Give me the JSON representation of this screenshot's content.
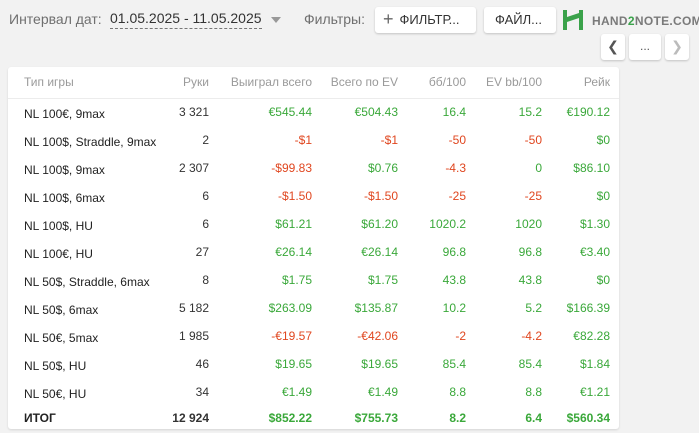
{
  "header": {
    "date_label": "Интервал дат:",
    "date_range": "01.05.2025 - 11.05.2025",
    "filters_label": "Фильтры:",
    "filter_button": "ФИЛЬТР...",
    "file_button": "ФАЙЛ...",
    "logo_prefix": "HAND",
    "logo_highlight": "2",
    "logo_suffix": "NOTE.COM"
  },
  "nav": {
    "prev": "❮",
    "more": "...",
    "next": "❯"
  },
  "colors": {
    "positive": "#3aa83a",
    "negative": "#e0461f",
    "brand": "#3aa24a"
  },
  "table": {
    "columns": [
      "Тип игры",
      "Руки",
      "Выиграл всего",
      "Всего по EV",
      "бб/100",
      "EV bb/100",
      "Рейк"
    ],
    "rows": [
      {
        "game": "NL 100€, 9max",
        "hands": "3 321",
        "won": "€545.44",
        "ev": "€504.43",
        "bb100": "16.4",
        "evbb100": "15.2",
        "rake": "€190.12"
      },
      {
        "game": "NL 100$, Straddle, 9max",
        "hands": "2",
        "won": "-$1",
        "ev": "-$1",
        "bb100": "-50",
        "evbb100": "-50",
        "rake": "$0"
      },
      {
        "game": "NL 100$, 9max",
        "hands": "2 307",
        "won": "-$99.83",
        "ev": "$0.76",
        "bb100": "-4.3",
        "evbb100": "0",
        "rake": "$86.10"
      },
      {
        "game": "NL 100$, 6max",
        "hands": "6",
        "won": "-$1.50",
        "ev": "-$1.50",
        "bb100": "-25",
        "evbb100": "-25",
        "rake": "$0"
      },
      {
        "game": "NL 100$, HU",
        "hands": "6",
        "won": "$61.21",
        "ev": "$61.20",
        "bb100": "1020.2",
        "evbb100": "1020",
        "rake": "$1.30"
      },
      {
        "game": "NL 100€, HU",
        "hands": "27",
        "won": "€26.14",
        "ev": "€26.14",
        "bb100": "96.8",
        "evbb100": "96.8",
        "rake": "€3.40"
      },
      {
        "game": "NL 50$, Straddle, 6max",
        "hands": "8",
        "won": "$1.75",
        "ev": "$1.75",
        "bb100": "43.8",
        "evbb100": "43.8",
        "rake": "$0"
      },
      {
        "game": "NL 50$, 6max",
        "hands": "5 182",
        "won": "$263.09",
        "ev": "$135.87",
        "bb100": "10.2",
        "evbb100": "5.2",
        "rake": "$166.39"
      },
      {
        "game": "NL 50€, 5max",
        "hands": "1 985",
        "won": "-€19.57",
        "ev": "-€42.06",
        "bb100": "-2",
        "evbb100": "-4.2",
        "rake": "€82.28"
      },
      {
        "game": "NL 50$, HU",
        "hands": "46",
        "won": "$19.65",
        "ev": "$19.65",
        "bb100": "85.4",
        "evbb100": "85.4",
        "rake": "$1.84"
      },
      {
        "game": "NL 50€, HU",
        "hands": "34",
        "won": "€1.49",
        "ev": "€1.49",
        "bb100": "8.8",
        "evbb100": "8.8",
        "rake": "€1.21"
      }
    ],
    "total": {
      "game": "ИТОГ",
      "hands": "12 924",
      "won": "$852.22",
      "ev": "$755.73",
      "bb100": "8.2",
      "evbb100": "6.4",
      "rake": "$560.34"
    }
  }
}
